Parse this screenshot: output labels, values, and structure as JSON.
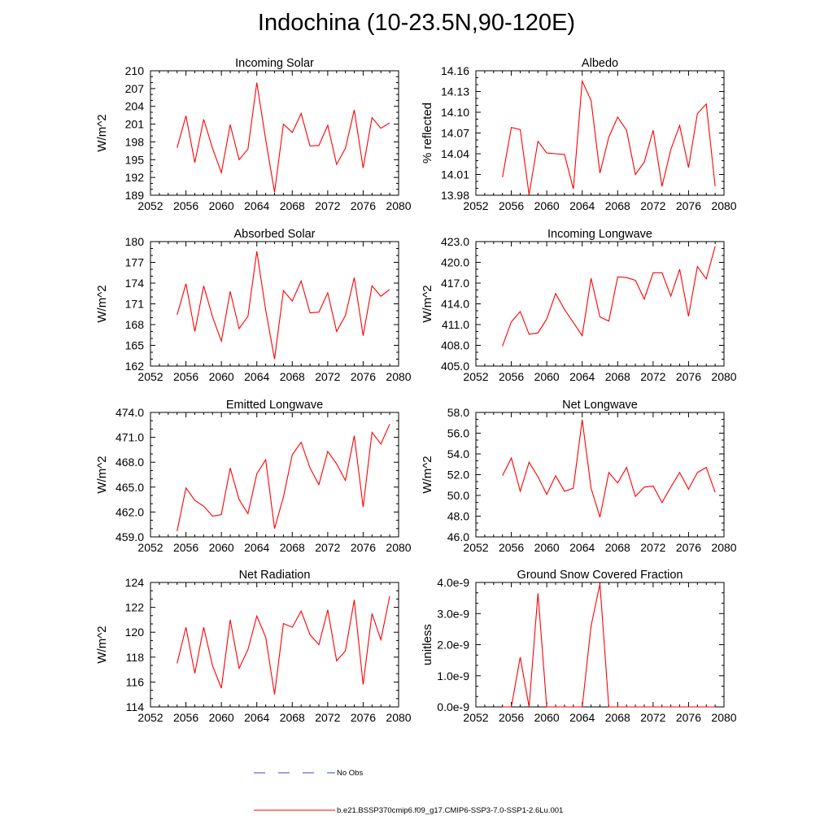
{
  "title": "Indochina (10-23.5N,90-120E)",
  "colors": {
    "model": "#ff0000",
    "obs": "#3344cc",
    "axis": "#000000"
  },
  "legend": {
    "obs_label": "No Obs",
    "model_label": "b.e21.BSSP370cmip6.f09_g17.CMIP6-SSP3-7.0-SSP1-2.6Lu.001"
  },
  "chart_data": [
    {
      "type": "line",
      "title": "Incoming Solar",
      "ylabel": "W/m^2",
      "xlim": [
        2052,
        2080
      ],
      "xticks": [
        "2052",
        "2056",
        "2060",
        "2064",
        "2068",
        "2072",
        "2076",
        "2080"
      ],
      "ylim": [
        189,
        210
      ],
      "yticks": [
        "189",
        "192",
        "195",
        "198",
        "201",
        "204",
        "207",
        "210"
      ],
      "series": [
        {
          "x": [
            2055,
            2056,
            2057,
            2058,
            2059,
            2060,
            2061,
            2062,
            2063,
            2064,
            2065,
            2066,
            2067,
            2068,
            2069,
            2070,
            2071,
            2072,
            2073,
            2074,
            2075,
            2076,
            2077,
            2078,
            2079
          ],
          "values": [
            197.0,
            202.4,
            194.5,
            201.8,
            196.9,
            192.8,
            200.9,
            195.0,
            196.8,
            208.0,
            198.4,
            189.5,
            201.0,
            199.6,
            202.8,
            197.3,
            197.4,
            200.8,
            194.2,
            196.9,
            203.4,
            193.6,
            202.1,
            200.3,
            201.2
          ]
        }
      ]
    },
    {
      "type": "line",
      "title": "Albedo",
      "ylabel": "% reflected",
      "xlim": [
        2052,
        2080
      ],
      "xticks": [
        "2052",
        "2056",
        "2060",
        "2064",
        "2068",
        "2072",
        "2076",
        "2080"
      ],
      "ylim": [
        13.98,
        14.16
      ],
      "yticks": [
        "13.98",
        "14.01",
        "14.04",
        "14.07",
        "14.10",
        "14.13",
        "14.16"
      ],
      "series": [
        {
          "x": [
            2055,
            2056,
            2057,
            2058,
            2059,
            2060,
            2061,
            2062,
            2063,
            2064,
            2065,
            2066,
            2067,
            2068,
            2069,
            2070,
            2071,
            2072,
            2073,
            2074,
            2075,
            2076,
            2077,
            2078,
            2079
          ],
          "values": [
            14.006,
            14.078,
            14.075,
            13.981,
            14.058,
            14.041,
            14.04,
            14.039,
            13.989,
            14.145,
            14.117,
            14.012,
            14.064,
            14.093,
            14.074,
            14.01,
            14.028,
            14.074,
            13.993,
            14.046,
            14.081,
            14.02,
            14.098,
            14.112,
            13.993
          ]
        }
      ]
    },
    {
      "type": "line",
      "title": "Absorbed Solar",
      "ylabel": "W/m^2",
      "xlim": [
        2052,
        2080
      ],
      "xticks": [
        "2052",
        "2056",
        "2060",
        "2064",
        "2068",
        "2072",
        "2076",
        "2080"
      ],
      "ylim": [
        162,
        180
      ],
      "yticks": [
        "162",
        "165",
        "168",
        "171",
        "174",
        "177",
        "180"
      ],
      "series": [
        {
          "x": [
            2055,
            2056,
            2057,
            2058,
            2059,
            2060,
            2061,
            2062,
            2063,
            2064,
            2065,
            2066,
            2067,
            2068,
            2069,
            2070,
            2071,
            2072,
            2073,
            2074,
            2075,
            2076,
            2077,
            2078,
            2079
          ],
          "values": [
            169.4,
            173.9,
            167.0,
            173.6,
            169.1,
            165.6,
            172.8,
            167.4,
            169.2,
            178.6,
            170.1,
            163.0,
            172.9,
            171.4,
            174.3,
            169.7,
            169.8,
            172.6,
            167.0,
            169.3,
            174.8,
            166.4,
            173.6,
            172.1,
            173.1
          ]
        }
      ]
    },
    {
      "type": "line",
      "title": "Incoming Longwave",
      "ylabel": "W/m^2",
      "xlim": [
        2052,
        2080
      ],
      "xticks": [
        "2052",
        "2056",
        "2060",
        "2064",
        "2068",
        "2072",
        "2076",
        "2080"
      ],
      "ylim": [
        405,
        423
      ],
      "yticks": [
        "405.0",
        "408.0",
        "411.0",
        "414.0",
        "417.0",
        "420.0",
        "423.0"
      ],
      "series": [
        {
          "x": [
            2055,
            2056,
            2057,
            2058,
            2059,
            2060,
            2061,
            2062,
            2063,
            2064,
            2065,
            2066,
            2067,
            2068,
            2069,
            2070,
            2071,
            2072,
            2073,
            2074,
            2075,
            2076,
            2077,
            2078,
            2079
          ],
          "values": [
            407.9,
            411.4,
            412.9,
            409.6,
            409.8,
            411.8,
            415.5,
            413.2,
            411.3,
            409.4,
            417.7,
            412.1,
            411.5,
            417.9,
            417.8,
            417.4,
            414.7,
            418.5,
            418.5,
            415.1,
            419.0,
            412.2,
            419.4,
            417.6,
            422.3
          ]
        }
      ]
    },
    {
      "type": "line",
      "title": "Emitted Longwave",
      "ylabel": "W/m^2",
      "xlim": [
        2052,
        2080
      ],
      "xticks": [
        "2052",
        "2056",
        "2060",
        "2064",
        "2068",
        "2072",
        "2076",
        "2080"
      ],
      "ylim": [
        459,
        474
      ],
      "yticks": [
        "459.0",
        "462.0",
        "465.0",
        "468.0",
        "471.0",
        "474.0"
      ],
      "series": [
        {
          "x": [
            2055,
            2056,
            2057,
            2058,
            2059,
            2060,
            2061,
            2062,
            2063,
            2064,
            2065,
            2066,
            2067,
            2068,
            2069,
            2070,
            2071,
            2072,
            2073,
            2074,
            2075,
            2076,
            2077,
            2078,
            2079
          ],
          "values": [
            459.7,
            464.9,
            463.4,
            462.7,
            461.5,
            461.7,
            467.3,
            463.5,
            461.8,
            466.6,
            468.3,
            460.0,
            463.8,
            468.9,
            470.4,
            467.3,
            465.3,
            469.3,
            467.8,
            465.8,
            471.2,
            462.6,
            471.6,
            470.2,
            472.6
          ]
        }
      ]
    },
    {
      "type": "line",
      "title": "Net Longwave",
      "ylabel": "W/m^2",
      "xlim": [
        2052,
        2080
      ],
      "xticks": [
        "2052",
        "2056",
        "2060",
        "2064",
        "2068",
        "2072",
        "2076",
        "2080"
      ],
      "ylim": [
        46,
        58
      ],
      "yticks": [
        "46.0",
        "48.0",
        "50.0",
        "52.0",
        "54.0",
        "56.0",
        "58.0"
      ],
      "series": [
        {
          "x": [
            2055,
            2056,
            2057,
            2058,
            2059,
            2060,
            2061,
            2062,
            2063,
            2064,
            2065,
            2066,
            2067,
            2068,
            2069,
            2070,
            2071,
            2072,
            2073,
            2074,
            2075,
            2076,
            2077,
            2078,
            2079
          ],
          "values": [
            51.9,
            53.6,
            50.4,
            53.2,
            51.8,
            50.1,
            51.9,
            50.4,
            50.7,
            57.3,
            50.7,
            47.9,
            52.2,
            51.2,
            52.7,
            49.9,
            50.8,
            50.9,
            49.3,
            50.8,
            52.2,
            50.6,
            52.2,
            52.7,
            50.3
          ]
        }
      ]
    },
    {
      "type": "line",
      "title": "Net Radiation",
      "ylabel": "W/m^2",
      "xlim": [
        2052,
        2080
      ],
      "xticks": [
        "2052",
        "2056",
        "2060",
        "2064",
        "2068",
        "2072",
        "2076",
        "2080"
      ],
      "ylim": [
        114,
        124
      ],
      "yticks": [
        "114",
        "116",
        "118",
        "120",
        "122",
        "124"
      ],
      "series": [
        {
          "x": [
            2055,
            2056,
            2057,
            2058,
            2059,
            2060,
            2061,
            2062,
            2063,
            2064,
            2065,
            2066,
            2067,
            2068,
            2069,
            2070,
            2071,
            2072,
            2073,
            2074,
            2075,
            2076,
            2077,
            2078,
            2079
          ],
          "values": [
            117.5,
            120.4,
            116.7,
            120.4,
            117.3,
            115.5,
            121.0,
            117.1,
            118.6,
            121.3,
            119.6,
            115.0,
            120.7,
            120.4,
            121.7,
            119.8,
            119.0,
            121.8,
            117.7,
            118.5,
            122.6,
            115.8,
            121.5,
            119.4,
            122.9
          ]
        }
      ]
    },
    {
      "type": "line",
      "title": "Ground Snow Covered Fraction",
      "ylabel": "unitless",
      "xlim": [
        2052,
        2080
      ],
      "xticks": [
        "2052",
        "2056",
        "2060",
        "2064",
        "2068",
        "2072",
        "2076",
        "2080"
      ],
      "ylim": [
        0,
        4e-09
      ],
      "yticks": [
        "0.0e-9",
        "1.0e-9",
        "2.0e-9",
        "3.0e-9",
        "4.0e-9"
      ],
      "series": [
        {
          "x": [
            2055,
            2056,
            2057,
            2058,
            2059,
            2060,
            2061,
            2062,
            2063,
            2064,
            2065,
            2066,
            2067,
            2068,
            2069,
            2070,
            2071,
            2072,
            2073,
            2074,
            2075,
            2076,
            2077,
            2078,
            2079
          ],
          "values": [
            0,
            0,
            1.6e-09,
            0,
            3.65e-09,
            0,
            0,
            0,
            0,
            0,
            2.6e-09,
            3.95e-09,
            0,
            0,
            0,
            0,
            0,
            0,
            0,
            0,
            0,
            0,
            0,
            0,
            0
          ]
        }
      ]
    }
  ]
}
